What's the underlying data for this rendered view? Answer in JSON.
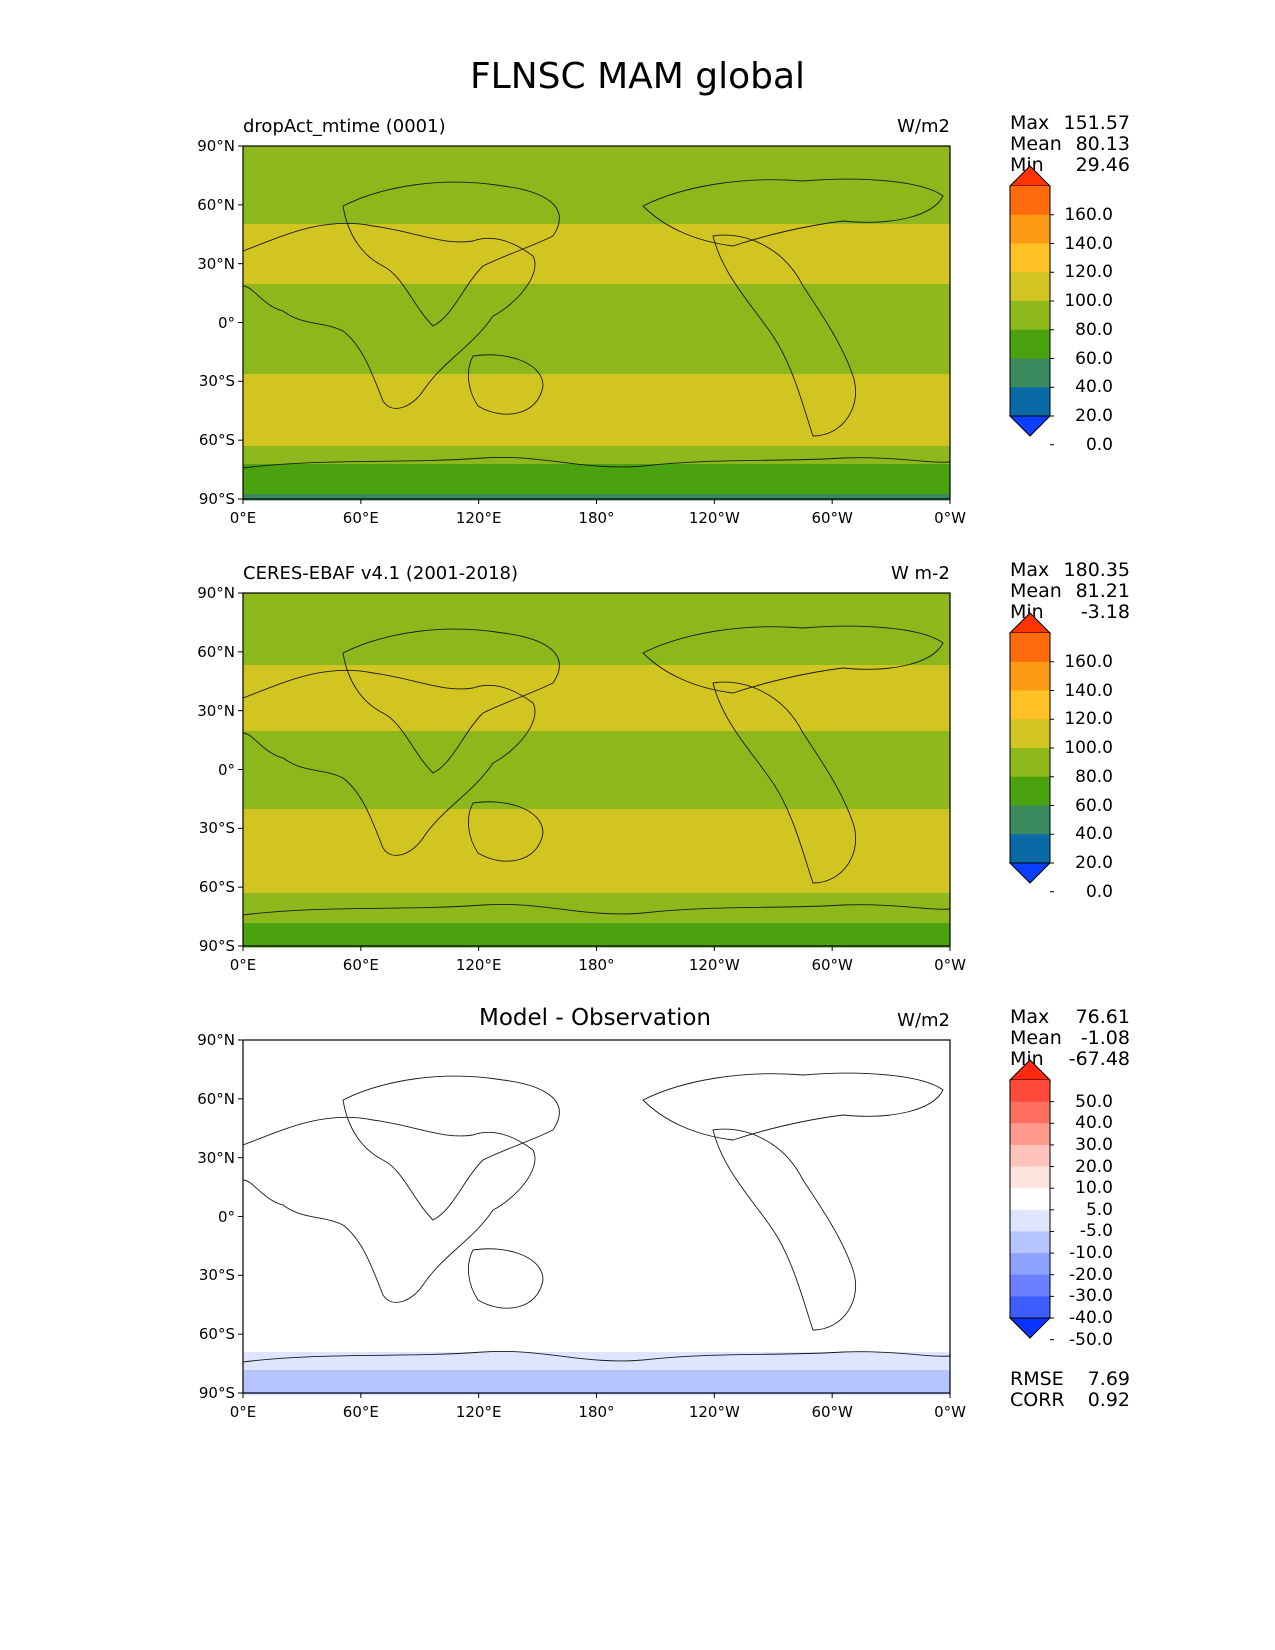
{
  "figure": {
    "title": "FLNSC MAM global"
  },
  "chart_data": [
    {
      "type": "heatmap",
      "title_left": "dropAct_mtime (0001)",
      "title_center": "",
      "units": "W/m2",
      "stats": {
        "Max": "151.57",
        "Mean": "80.13",
        "Min": "29.46"
      },
      "xticks": [
        "0°E",
        "60°E",
        "120°E",
        "180°",
        "120°W",
        "60°W",
        "0°W"
      ],
      "yticks": [
        "90°N",
        "60°N",
        "30°N",
        "0°",
        "30°S",
        "60°S",
        "90°S"
      ],
      "colorbar": {
        "levels": [
          "160.0",
          "140.0",
          "120.0",
          "100.0",
          "80.0",
          "60.0",
          "40.0",
          "20.0",
          "0.0"
        ],
        "colors": [
          "#ff3300",
          "#ff6a0d",
          "#ff9a14",
          "#ffc125",
          "#d3c521",
          "#8cb81b",
          "#4ba20f",
          "#3b8a5e",
          "#0a6aa6",
          "#0a3fff"
        ]
      },
      "zonal_profile_lat": [
        90,
        75,
        60,
        45,
        30,
        15,
        0,
        -15,
        -30,
        -45,
        -60,
        -75,
        -90
      ],
      "zonal_profile_value": [
        78,
        72,
        74,
        84,
        92,
        72,
        62,
        76,
        82,
        85,
        84,
        55,
        38
      ],
      "grid": false
    },
    {
      "type": "heatmap",
      "title_left": "CERES-EBAF v4.1 (2001-2018)",
      "title_center": "",
      "units": "W m-2",
      "stats": {
        "Max": "180.35",
        "Mean": "81.21",
        "Min": "-3.18"
      },
      "xticks": [
        "0°E",
        "60°E",
        "120°E",
        "180°",
        "120°W",
        "60°W",
        "0°W"
      ],
      "yticks": [
        "90°N",
        "60°N",
        "30°N",
        "0°",
        "30°S",
        "60°S",
        "90°S"
      ],
      "colorbar": {
        "levels": [
          "160.0",
          "140.0",
          "120.0",
          "100.0",
          "80.0",
          "60.0",
          "40.0",
          "20.0",
          "0.0"
        ],
        "colors": [
          "#ff3300",
          "#ff6a0d",
          "#ff9a14",
          "#ffc125",
          "#d3c521",
          "#8cb81b",
          "#4ba20f",
          "#3b8a5e",
          "#0a6aa6",
          "#0a3fff"
        ]
      },
      "zonal_profile_lat": [
        90,
        75,
        60,
        45,
        30,
        15,
        0,
        -15,
        -30,
        -45,
        -60,
        -75,
        -90
      ],
      "zonal_profile_value": [
        80,
        72,
        74,
        86,
        96,
        72,
        60,
        78,
        84,
        86,
        84,
        62,
        55
      ],
      "grid": false
    },
    {
      "type": "heatmap",
      "title_left": "",
      "title_center": "Model - Observation",
      "units": "W/m2",
      "stats": {
        "Max": "76.61",
        "Mean": "-1.08",
        "Min": "-67.48"
      },
      "extra_stats": {
        "RMSE": "7.69",
        "CORR": "0.92"
      },
      "xticks": [
        "0°E",
        "60°E",
        "120°E",
        "180°",
        "120°W",
        "60°W",
        "0°W"
      ],
      "yticks": [
        "90°N",
        "60°N",
        "30°N",
        "0°",
        "30°S",
        "60°S",
        "90°S"
      ],
      "colorbar": {
        "levels": [
          "50.0",
          "40.0",
          "30.0",
          "20.0",
          "10.0",
          "5.0",
          "-5.0",
          "-10.0",
          "-20.0",
          "-30.0",
          "-40.0",
          "-50.0"
        ],
        "colors": [
          "#ff2a10",
          "#ff4a3a",
          "#ff6f60",
          "#ff9a8c",
          "#ffc3bb",
          "#ffe3df",
          "#ffffff",
          "#dfe5ff",
          "#b6c4ff",
          "#8ea2ff",
          "#6a80ff",
          "#3f5cff",
          "#0a33ff"
        ]
      },
      "zonal_profile_lat": [
        90,
        75,
        60,
        45,
        30,
        15,
        0,
        -15,
        -30,
        -45,
        -60,
        -75,
        -90
      ],
      "zonal_profile_value": [
        2,
        0,
        -4,
        -3,
        -4,
        1,
        2,
        -1,
        -3,
        0,
        1,
        -8,
        -17
      ],
      "grid": false
    }
  ]
}
